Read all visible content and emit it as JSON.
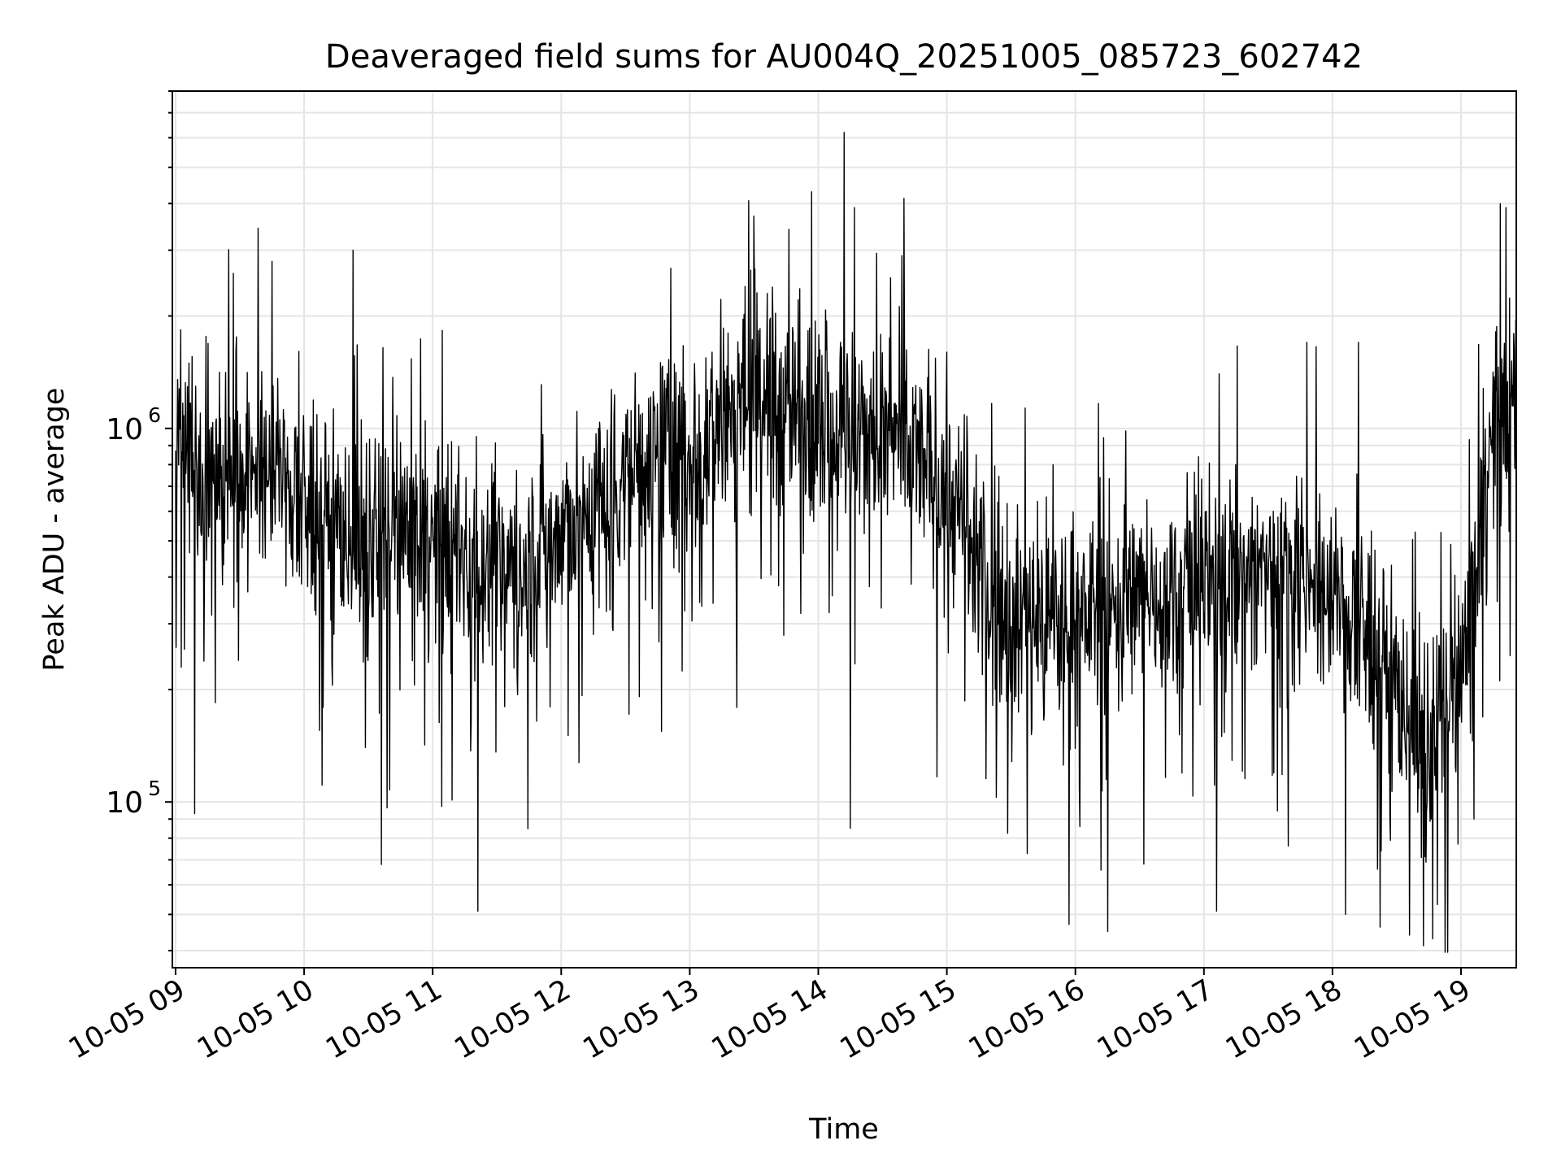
{
  "chart_data": {
    "type": "line",
    "title": "Deaveraged field sums for AU004Q_20251005_085723_602742",
    "xlabel": "Time",
    "ylabel": "Peak ADU - average",
    "x_tick_labels": [
      "10-05 09",
      "10-05 10",
      "10-05 11",
      "10-05 12",
      "10-05 13",
      "10-05 14",
      "10-05 15",
      "10-05 16",
      "10-05 17",
      "10-05 18",
      "10-05 19"
    ],
    "x_ticks_hours": [
      9,
      10,
      11,
      12,
      13,
      14,
      15,
      16,
      17,
      18,
      19
    ],
    "xlim_hours": [
      8.975,
      19.43
    ],
    "y_scale": "log",
    "y_tick_values": [
      100000,
      1000000
    ],
    "y_tick_bases": [
      "10",
      "10"
    ],
    "y_tick_exponents": [
      "5",
      "6"
    ],
    "ylim": [
      36000,
      8000000
    ],
    "grid": true,
    "line_color": "#000000",
    "grid_color": "#e5e5e5",
    "series": [
      {
        "x_hours": [
          9.0,
          9.25,
          9.5,
          9.75,
          10.0,
          10.25,
          10.5,
          10.75,
          11.0,
          11.25,
          11.5,
          11.75,
          12.0,
          12.25,
          12.5,
          12.75,
          13.0,
          13.25,
          13.5,
          13.75,
          14.0,
          14.25,
          14.5,
          14.75,
          15.0,
          15.25,
          15.5,
          15.75,
          16.0,
          16.25,
          16.5,
          16.75,
          17.0,
          17.25,
          17.5,
          17.75,
          18.0,
          18.25,
          18.5,
          18.75,
          19.0,
          19.25,
          19.43
        ],
        "center": [
          1000000,
          800000,
          750000,
          800000,
          600000,
          550000,
          500000,
          500000,
          500000,
          450000,
          420000,
          450000,
          520000,
          600000,
          750000,
          850000,
          850000,
          1100000,
          1250000,
          1150000,
          1050000,
          1000000,
          950000,
          850000,
          700000,
          400000,
          320000,
          300000,
          320000,
          330000,
          350000,
          370000,
          380000,
          400000,
          420000,
          400000,
          350000,
          280000,
          200000,
          140000,
          200000,
          1000000,
          1200000
        ],
        "peaks": [
          {
            "x": 9.45,
            "y": 2600000
          },
          {
            "x": 9.75,
            "y": 2800000
          },
          {
            "x": 10.38,
            "y": 3000000
          },
          {
            "x": 13.5,
            "y": 3700000
          },
          {
            "x": 13.95,
            "y": 4300000
          },
          {
            "x": 14.2,
            "y": 6200000
          },
          {
            "x": 14.28,
            "y": 3900000
          },
          {
            "x": 14.65,
            "y": 2900000
          },
          {
            "x": 15.0,
            "y": 1600000
          },
          {
            "x": 17.12,
            "y": 1400000
          },
          {
            "x": 17.8,
            "y": 1700000
          },
          {
            "x": 18.2,
            "y": 1700000
          },
          {
            "x": 19.35,
            "y": 3900000
          }
        ],
        "troughs": [
          {
            "x": 9.15,
            "y": 93000
          },
          {
            "x": 10.6,
            "y": 68000
          },
          {
            "x": 11.35,
            "y": 51000
          },
          {
            "x": 14.25,
            "y": 85000
          },
          {
            "x": 15.95,
            "y": 47000
          },
          {
            "x": 16.25,
            "y": 45000
          },
          {
            "x": 17.1,
            "y": 51000
          },
          {
            "x": 18.1,
            "y": 50000
          },
          {
            "x": 18.6,
            "y": 44000
          },
          {
            "x": 18.78,
            "y": 43000
          },
          {
            "x": 19.1,
            "y": 90000
          }
        ]
      }
    ]
  }
}
